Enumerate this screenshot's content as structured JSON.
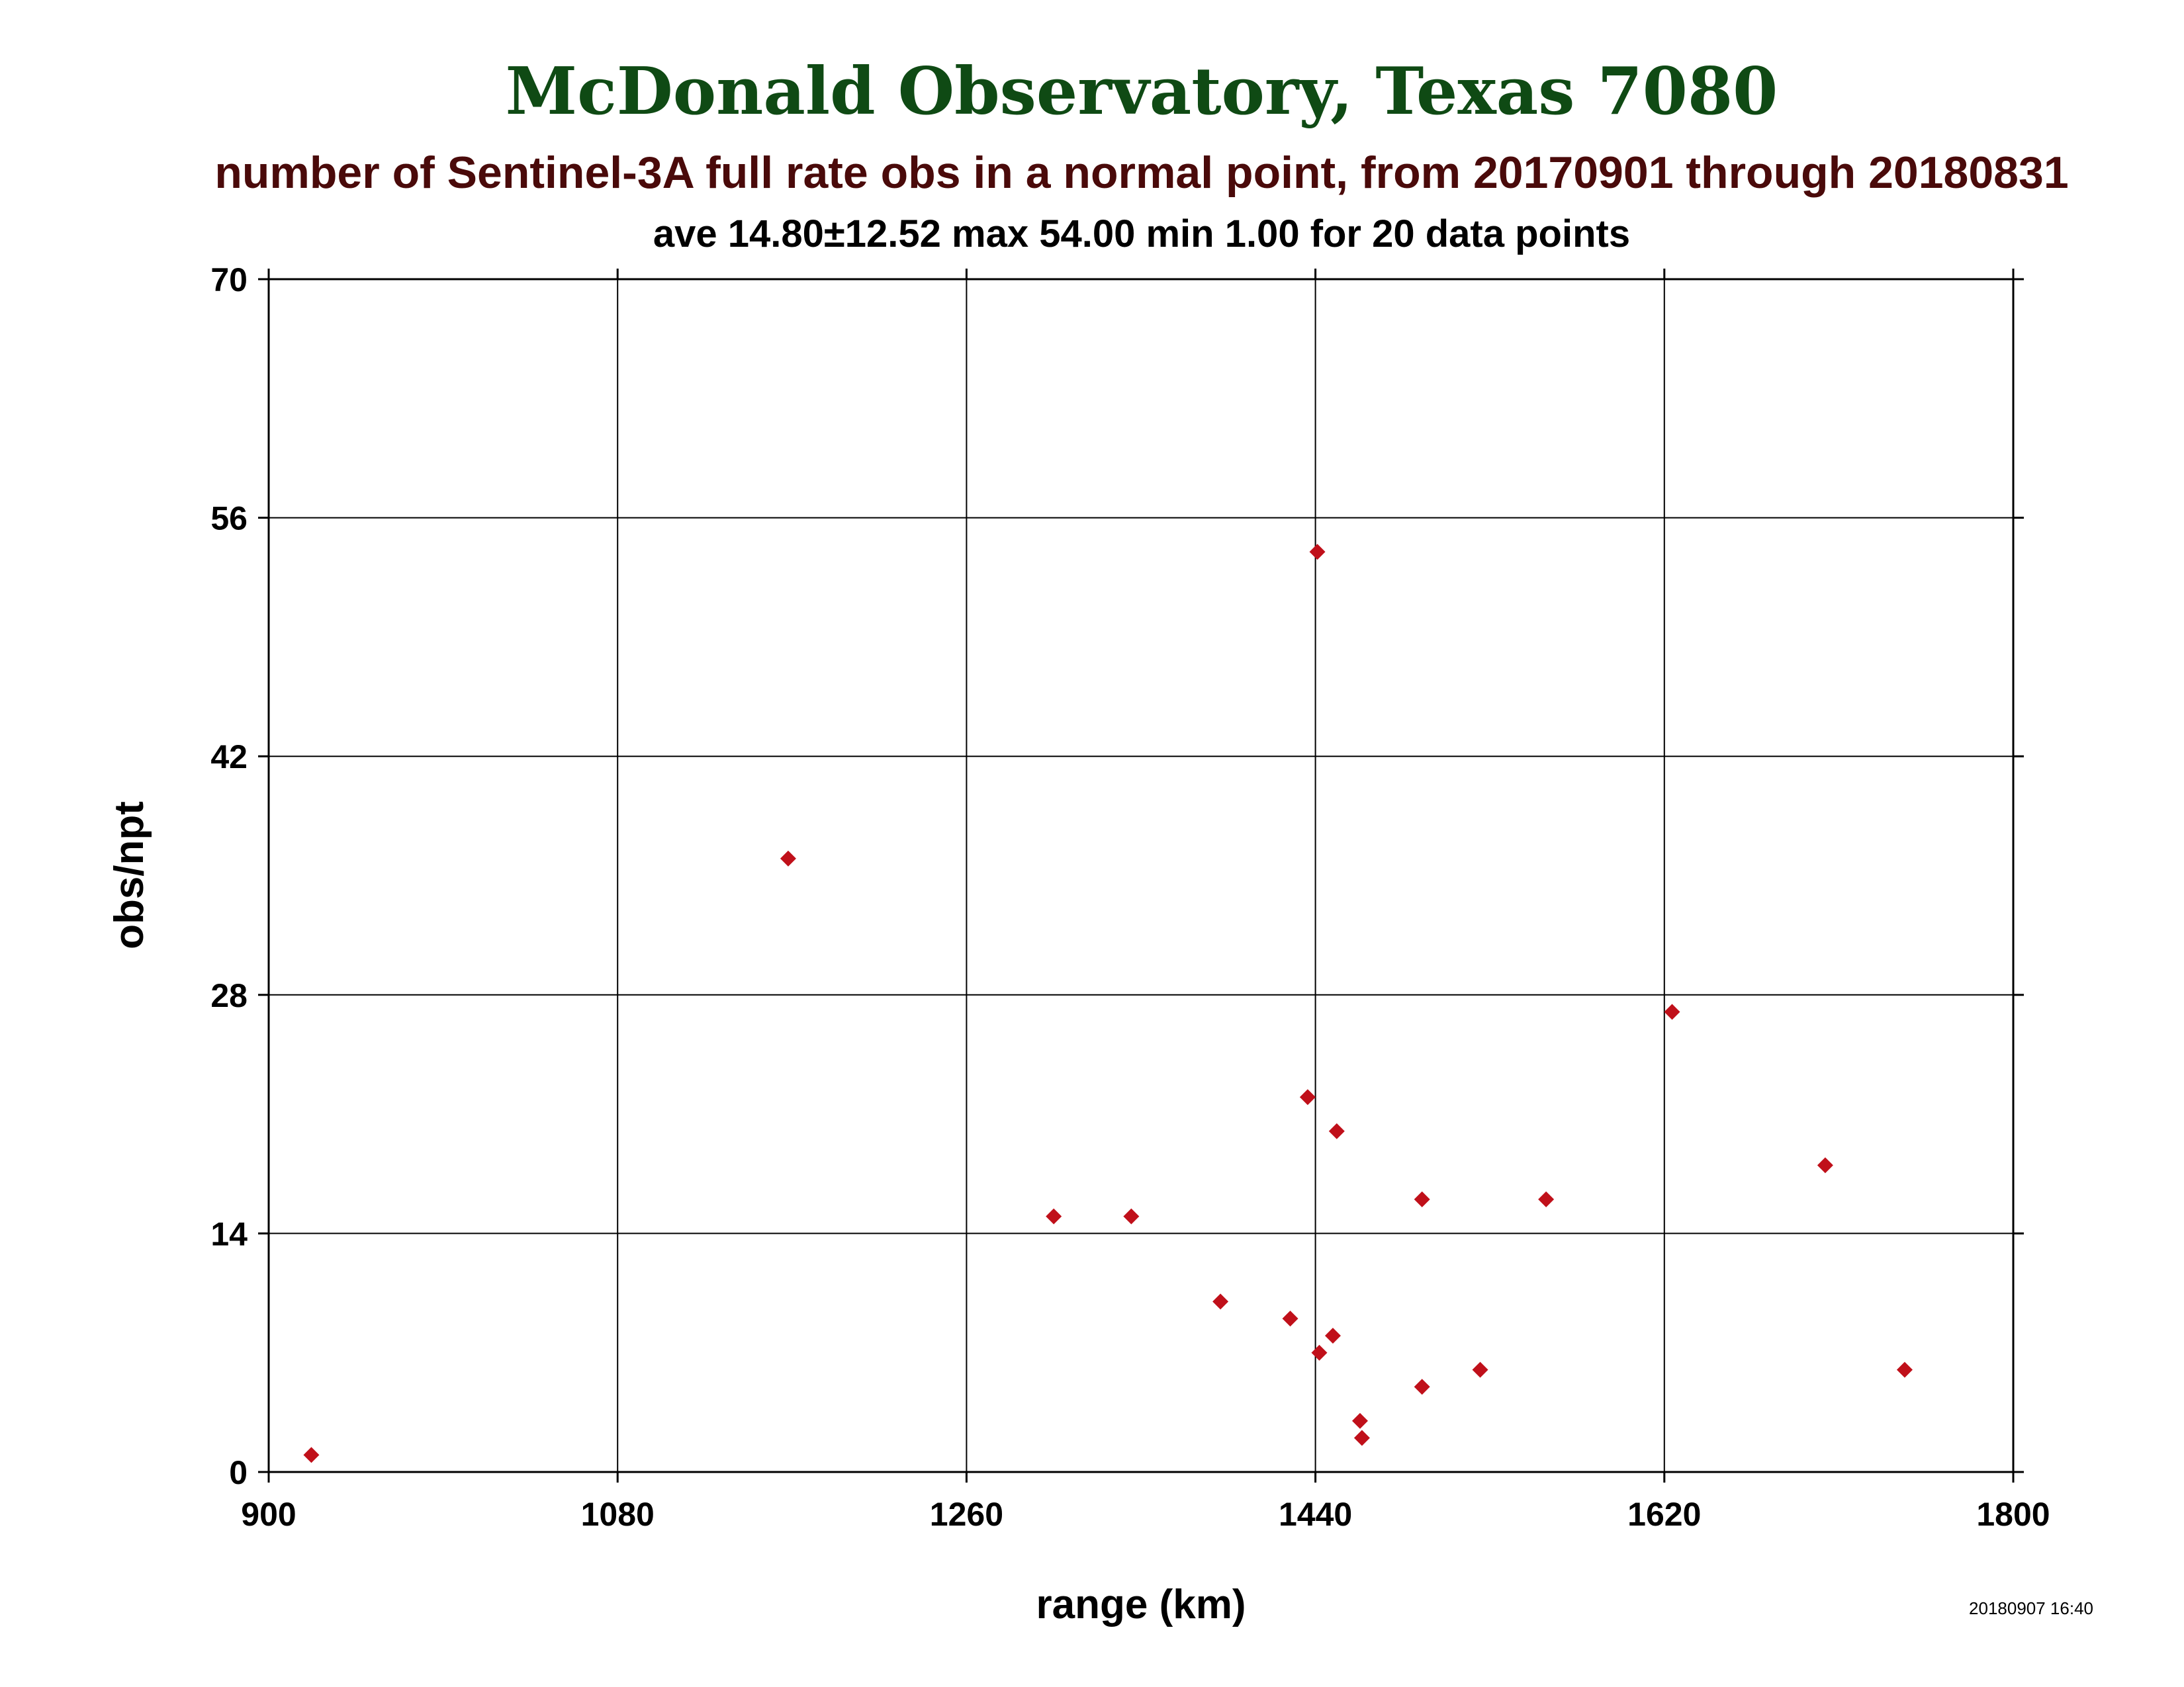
{
  "colors": {
    "title": "#0f4a14",
    "subtitle": "#4a0a0a",
    "text": "#000000",
    "marker": "#c0101a",
    "grid": "#000000"
  },
  "chart_data": {
    "type": "scatter",
    "title": "McDonald Observatory, Texas 7080",
    "subtitle": "number of Sentinel-3A full rate obs in a normal point, from 20170901 through 20180831",
    "stats": "ave 14.80±12.52 max 54.00 min 1.00 for 20 data points",
    "xlabel": "range (km)",
    "ylabel": "obs/npt",
    "timestamp": "20180907 16:40",
    "xlim": [
      900,
      1800
    ],
    "ylim": [
      0,
      70
    ],
    "xticks": [
      900,
      1080,
      1260,
      1440,
      1620,
      1800
    ],
    "yticks": [
      0,
      14,
      28,
      42,
      56,
      70
    ],
    "grid": true,
    "marker": "diamond",
    "points": [
      {
        "x": 922,
        "y": 1
      },
      {
        "x": 1168,
        "y": 36
      },
      {
        "x": 1305,
        "y": 15
      },
      {
        "x": 1345,
        "y": 15
      },
      {
        "x": 1391,
        "y": 10
      },
      {
        "x": 1427,
        "y": 9
      },
      {
        "x": 1436,
        "y": 22
      },
      {
        "x": 1441,
        "y": 54
      },
      {
        "x": 1442,
        "y": 7
      },
      {
        "x": 1449,
        "y": 8
      },
      {
        "x": 1451,
        "y": 20
      },
      {
        "x": 1463,
        "y": 3
      },
      {
        "x": 1464,
        "y": 2
      },
      {
        "x": 1495,
        "y": 16
      },
      {
        "x": 1495,
        "y": 5
      },
      {
        "x": 1525,
        "y": 6
      },
      {
        "x": 1559,
        "y": 16
      },
      {
        "x": 1624,
        "y": 27
      },
      {
        "x": 1703,
        "y": 18
      },
      {
        "x": 1744,
        "y": 6
      }
    ]
  }
}
